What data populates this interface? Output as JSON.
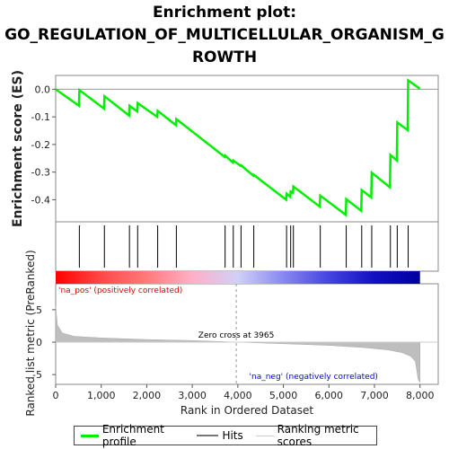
{
  "chart_data": {
    "type": "line",
    "title_lines": [
      "Enrichment plot:",
      "GO_REGULATION_OF_MULTICELLULAR_ORGANISM_G",
      "ROWTH"
    ],
    "xlabel": "Rank in Ordered Dataset",
    "ylabel_top": "Enrichment score (ES)",
    "ylabel_bottom": "Ranked list metric (PreRanked)",
    "xlim": [
      0,
      8400
    ],
    "x_ticks": [
      0,
      1000,
      2000,
      3000,
      4000,
      5000,
      6000,
      7000,
      8000
    ],
    "x_tick_labels": [
      "0",
      "1,000",
      "2,000",
      "3,000",
      "4,000",
      "5,000",
      "6,000",
      "7,000",
      "8,000"
    ],
    "es_ylim": [
      -0.48,
      0.05
    ],
    "es_y_ticks": [
      0.0,
      -0.1,
      -0.2,
      -0.3,
      -0.4
    ],
    "es_y_tick_labels": [
      "0.0",
      "-0.1",
      "-0.2",
      "-0.3",
      "-0.4"
    ],
    "metric_ylim": [
      -6.5,
      9
    ],
    "metric_y_ticks": [
      5,
      0,
      -5
    ],
    "metric_y_tick_labels": [
      "5",
      "0",
      "-5"
    ],
    "hits": [
      520,
      1070,
      1620,
      1800,
      2240,
      2650,
      3720,
      3900,
      4070,
      4350,
      5070,
      5160,
      5220,
      5810,
      6380,
      6720,
      6940,
      7350,
      7500,
      7740
    ],
    "enrichment_profile": [
      [
        0,
        0.0
      ],
      [
        510,
        -0.06
      ],
      [
        520,
        -0.003
      ],
      [
        1060,
        -0.07
      ],
      [
        1070,
        -0.025
      ],
      [
        1610,
        -0.095
      ],
      [
        1620,
        -0.06
      ],
      [
        1790,
        -0.08
      ],
      [
        1800,
        -0.05
      ],
      [
        2230,
        -0.1
      ],
      [
        2240,
        -0.078
      ],
      [
        2640,
        -0.13
      ],
      [
        2650,
        -0.108
      ],
      [
        3710,
        -0.245
      ],
      [
        3720,
        -0.24
      ],
      [
        3890,
        -0.265
      ],
      [
        3900,
        -0.258
      ],
      [
        4060,
        -0.277
      ],
      [
        4070,
        -0.275
      ],
      [
        4340,
        -0.313
      ],
      [
        4350,
        -0.31
      ],
      [
        5060,
        -0.4
      ],
      [
        5070,
        -0.378
      ],
      [
        5150,
        -0.39
      ],
      [
        5160,
        -0.37
      ],
      [
        5210,
        -0.375
      ],
      [
        5220,
        -0.352
      ],
      [
        5800,
        -0.425
      ],
      [
        5810,
        -0.385
      ],
      [
        6370,
        -0.455
      ],
      [
        6380,
        -0.398
      ],
      [
        6710,
        -0.44
      ],
      [
        6720,
        -0.365
      ],
      [
        6930,
        -0.392
      ],
      [
        6940,
        -0.302
      ],
      [
        7340,
        -0.355
      ],
      [
        7350,
        -0.238
      ],
      [
        7490,
        -0.258
      ],
      [
        7500,
        -0.12
      ],
      [
        7730,
        -0.148
      ],
      [
        7740,
        0.032
      ],
      [
        8000,
        0.002
      ]
    ],
    "metric_profile": [
      [
        0,
        5.5
      ],
      [
        40,
        2.6
      ],
      [
        150,
        1.4
      ],
      [
        400,
        0.9
      ],
      [
        1000,
        0.65
      ],
      [
        2000,
        0.4
      ],
      [
        3000,
        0.25
      ],
      [
        3965,
        0.0
      ],
      [
        5000,
        -0.25
      ],
      [
        6000,
        -0.5
      ],
      [
        6800,
        -0.85
      ],
      [
        7300,
        -1.2
      ],
      [
        7600,
        -1.6
      ],
      [
        7800,
        -2.2
      ],
      [
        7900,
        -3.0
      ],
      [
        7960,
        -5.8
      ],
      [
        8000,
        -6.2
      ]
    ],
    "zero_cross_label": "Zero cross at 3965",
    "zero_cross_x": 3965,
    "pos_label": "'na_pos' (positively correlated)",
    "neg_label": "'na_neg' (negatively correlated)",
    "colors": {
      "enrichment_line": "#00ee00",
      "hit_line": "#000000",
      "metric_fill": "#bebebe",
      "pos_text": "#ee0000",
      "neg_text": "#0000ee",
      "zero_line": "#999999"
    },
    "heatmap_colors": [
      "#ff0000",
      "#ff4848",
      "#ff7a7a",
      "#ffb0c8",
      "#d0d0f8",
      "#8888f0",
      "#4444e0",
      "#1010c0",
      "#0000a0"
    ],
    "legend": [
      {
        "label": "Enrichment profile",
        "color": "#00ee00",
        "style": "thick"
      },
      {
        "label": "Hits",
        "color": "#777777",
        "style": "medium"
      },
      {
        "label": "Ranking metric scores",
        "color": "#cccccc",
        "style": "thin"
      }
    ]
  }
}
